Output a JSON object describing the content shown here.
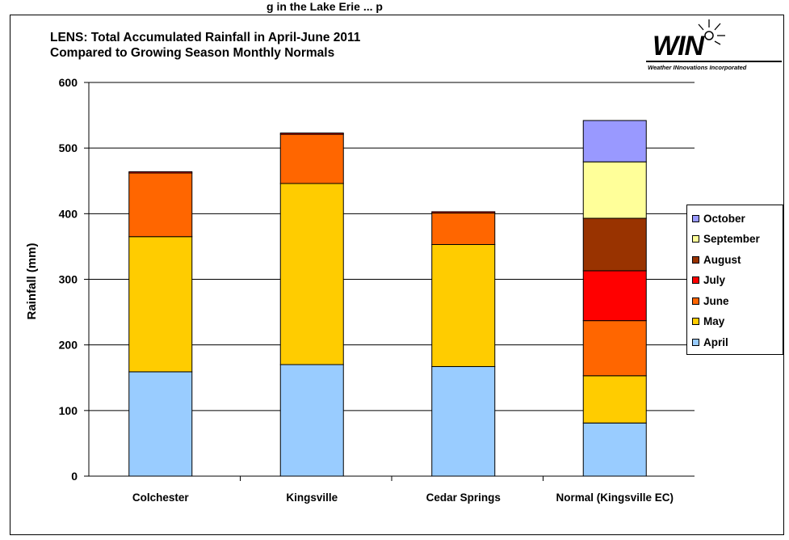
{
  "header": {
    "banner": "g in the Lake Erie ... p",
    "title_line1": "LENS: Total Accumulated Rainfall in April-June 2011",
    "title_line2": "Compared to Growing Season Monthly Normals"
  },
  "logo": {
    "word": "WIN",
    "tagline": "Weather INnovations Incorporated"
  },
  "chart_data": {
    "type": "bar",
    "stacked": true,
    "title": "LENS: Total Accumulated Rainfall in April-June 2011 Compared to Growing Season Monthly Normals",
    "xlabel": "",
    "ylabel": "Rainfall (mm)",
    "ylim": [
      0,
      600
    ],
    "yticks": [
      0,
      100,
      200,
      300,
      400,
      500,
      600
    ],
    "grid": true,
    "legend_position": "right",
    "categories": [
      "Colchester",
      "Kingsville",
      "Cedar Springs",
      "Normal (Kingsville EC)"
    ],
    "series": [
      {
        "name": "April",
        "color": "#99ccff",
        "values": [
          159,
          170,
          167,
          81
        ]
      },
      {
        "name": "May",
        "color": "#ffcc00",
        "values": [
          206,
          276,
          186,
          72
        ]
      },
      {
        "name": "June",
        "color": "#ff6600",
        "values": [
          97,
          75,
          48,
          84
        ]
      },
      {
        "name": "July",
        "color": "#ff0000",
        "values": [
          2,
          2,
          2,
          76
        ]
      },
      {
        "name": "August",
        "color": "#993300",
        "values": [
          0,
          0,
          0,
          80
        ]
      },
      {
        "name": "September",
        "color": "#ffff99",
        "values": [
          0,
          0,
          0,
          86
        ]
      },
      {
        "name": "October",
        "color": "#9999ff",
        "values": [
          0,
          0,
          0,
          63
        ]
      }
    ]
  }
}
